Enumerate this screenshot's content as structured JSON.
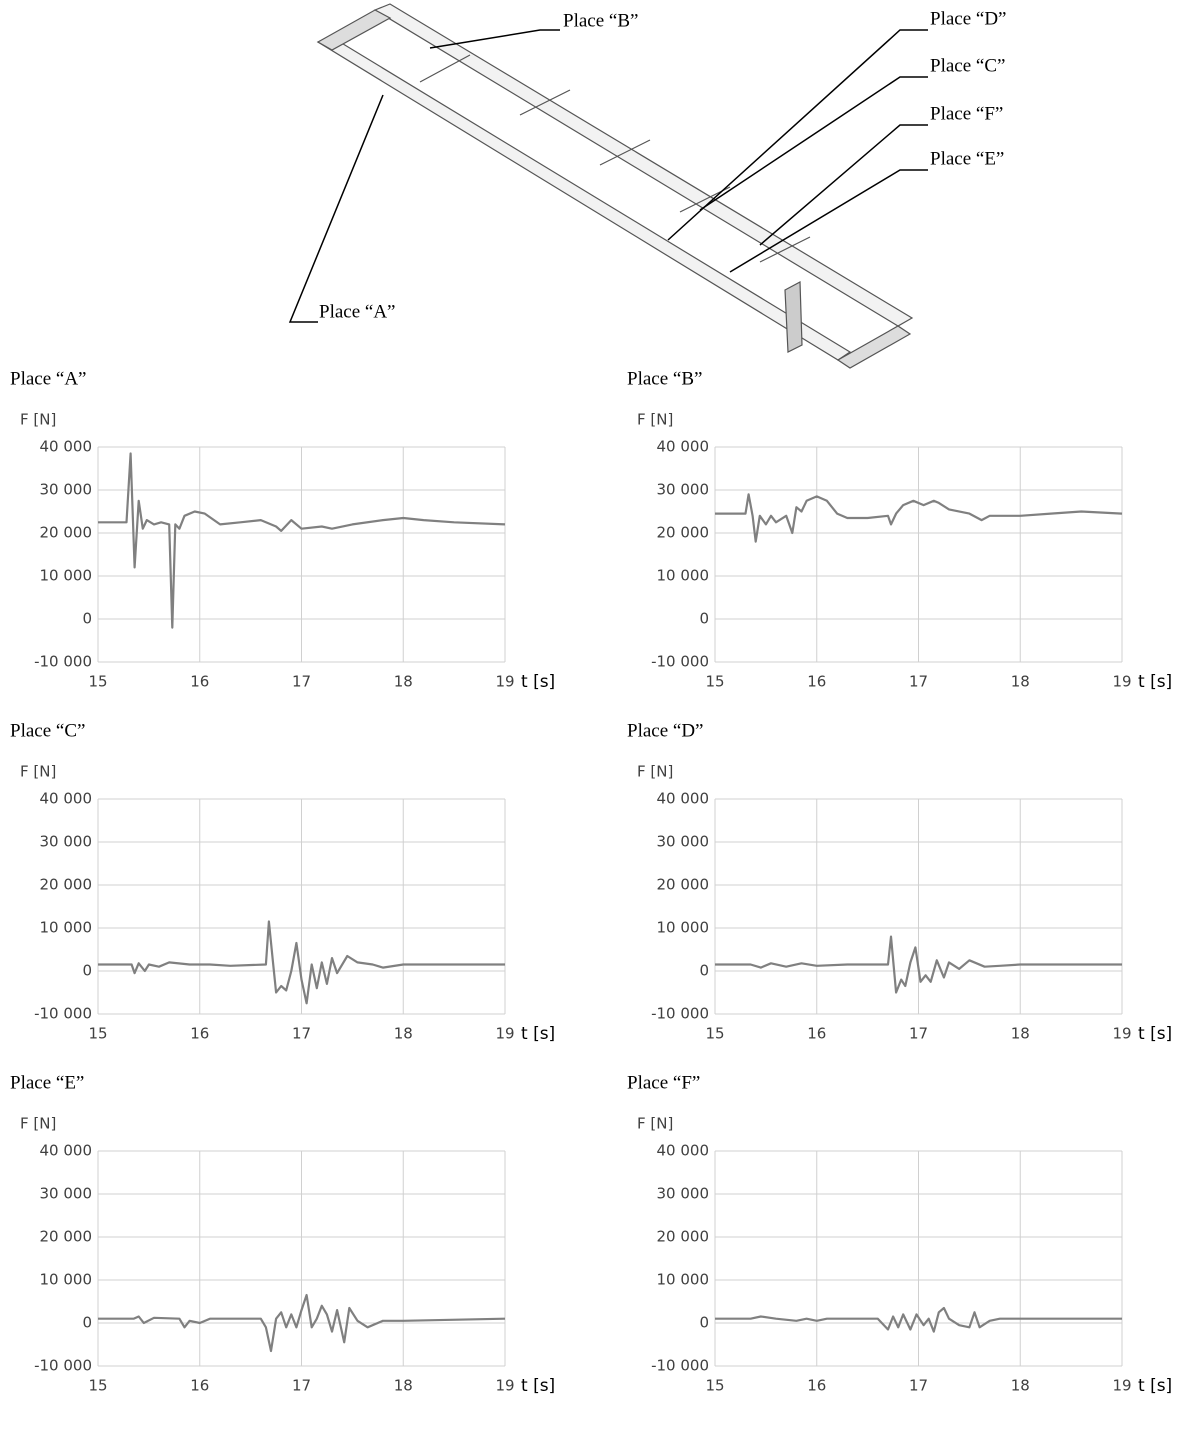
{
  "diagram": {
    "labels": [
      "Place “A”",
      "Place “B”",
      "Place “C”",
      "Place “D”",
      "Place “E”",
      "Place “F”"
    ]
  },
  "chart_data": [
    {
      "type": "line",
      "title": "Place “A”",
      "ylabel": "F [N]",
      "xlabel": "t [s]",
      "xlim": [
        15,
        19
      ],
      "ylim": [
        -10000,
        40000
      ],
      "xticks": [
        15,
        16,
        17,
        18,
        19
      ],
      "yticks": [
        {
          "value": -10000,
          "label": "-10 000"
        },
        0,
        {
          "value": 10000,
          "label": "10 000"
        },
        {
          "value": 20000,
          "label": "20 000"
        },
        {
          "value": 30000,
          "label": "30 000"
        },
        {
          "value": 40000,
          "label": "40 000"
        }
      ],
      "grid": true,
      "x": [
        15,
        15.28,
        15.32,
        15.36,
        15.4,
        15.44,
        15.48,
        15.55,
        15.62,
        15.7,
        15.73,
        15.76,
        15.8,
        15.85,
        15.95,
        16.05,
        16.2,
        16.4,
        16.6,
        16.75,
        16.8,
        16.9,
        17.0,
        17.2,
        17.3,
        17.5,
        17.8,
        18.0,
        18.2,
        18.5,
        19
      ],
      "series": [
        {
          "color": "#808080",
          "values": [
            22500,
            22500,
            38500,
            12000,
            27500,
            21000,
            23000,
            22000,
            22500,
            22000,
            -2000,
            22000,
            21000,
            24000,
            25000,
            24500,
            22000,
            22500,
            23000,
            21500,
            20500,
            23000,
            21000,
            21500,
            21000,
            22000,
            23000,
            23500,
            23000,
            22500,
            22000
          ]
        }
      ]
    },
    {
      "type": "line",
      "title": "Place “B”",
      "ylabel": "F [N]",
      "xlabel": "t [s]",
      "xlim": [
        15,
        19
      ],
      "ylim": [
        -10000,
        40000
      ],
      "xticks": [
        15,
        16,
        17,
        18,
        19
      ],
      "yticks": [
        {
          "value": -10000,
          "label": "-10 000"
        },
        0,
        {
          "value": 10000,
          "label": "10 000"
        },
        {
          "value": 20000,
          "label": "20 000"
        },
        {
          "value": 30000,
          "label": "30 000"
        },
        {
          "value": 40000,
          "label": "40 000"
        }
      ],
      "grid": true,
      "x": [
        15,
        15.3,
        15.33,
        15.37,
        15.4,
        15.44,
        15.5,
        15.55,
        15.6,
        15.7,
        15.76,
        15.8,
        15.85,
        15.9,
        16.0,
        16.1,
        16.2,
        16.3,
        16.5,
        16.7,
        16.73,
        16.78,
        16.85,
        16.95,
        17.05,
        17.15,
        17.2,
        17.3,
        17.5,
        17.62,
        17.7,
        18.0,
        18.3,
        18.6,
        19
      ],
      "series": [
        {
          "color": "#808080",
          "values": [
            24500,
            24500,
            29000,
            24000,
            18000,
            24000,
            22000,
            24000,
            22500,
            24000,
            20000,
            26000,
            25000,
            27500,
            28500,
            27500,
            24500,
            23500,
            23500,
            24000,
            22000,
            24500,
            26500,
            27500,
            26500,
            27500,
            27000,
            25500,
            24500,
            23000,
            24000,
            24000,
            24500,
            25000,
            24500
          ]
        }
      ]
    },
    {
      "type": "line",
      "title": "Place “C”",
      "ylabel": "F [N]",
      "xlabel": "t [s]",
      "xlim": [
        15,
        19
      ],
      "ylim": [
        -10000,
        40000
      ],
      "xticks": [
        15,
        16,
        17,
        18,
        19
      ],
      "yticks": [
        {
          "value": -10000,
          "label": "-10 000"
        },
        0,
        {
          "value": 10000,
          "label": "10 000"
        },
        {
          "value": 20000,
          "label": "20 000"
        },
        {
          "value": 30000,
          "label": "30 000"
        },
        {
          "value": 40000,
          "label": "40 000"
        }
      ],
      "grid": true,
      "x": [
        15,
        15.33,
        15.36,
        15.4,
        15.46,
        15.5,
        15.6,
        15.7,
        15.9,
        16.1,
        16.3,
        16.65,
        16.68,
        16.72,
        16.75,
        16.8,
        16.85,
        16.9,
        16.95,
        17.0,
        17.05,
        17.1,
        17.15,
        17.2,
        17.25,
        17.3,
        17.35,
        17.45,
        17.55,
        17.7,
        17.8,
        18.0,
        19
      ],
      "series": [
        {
          "color": "#808080",
          "values": [
            1500,
            1500,
            -500,
            1800,
            0,
            1500,
            1000,
            2000,
            1500,
            1500,
            1200,
            1500,
            11500,
            2000,
            -5000,
            -3500,
            -4500,
            0,
            6500,
            -2000,
            -7500,
            1500,
            -4000,
            2000,
            -3000,
            3000,
            -500,
            3500,
            2000,
            1500,
            800,
            1500,
            1500
          ]
        }
      ]
    },
    {
      "type": "line",
      "title": "Place “D”",
      "ylabel": "F [N]",
      "xlabel": "t [s]",
      "xlim": [
        15,
        19
      ],
      "ylim": [
        -10000,
        40000
      ],
      "xticks": [
        15,
        16,
        17,
        18,
        19
      ],
      "yticks": [
        {
          "value": -10000,
          "label": "-10 000"
        },
        0,
        {
          "value": 10000,
          "label": "10 000"
        },
        {
          "value": 20000,
          "label": "20 000"
        },
        {
          "value": 30000,
          "label": "30 000"
        },
        {
          "value": 40000,
          "label": "40 000"
        }
      ],
      "grid": true,
      "x": [
        15,
        15.35,
        15.45,
        15.55,
        15.7,
        15.85,
        16.0,
        16.3,
        16.7,
        16.73,
        16.78,
        16.83,
        16.87,
        16.92,
        16.97,
        17.02,
        17.07,
        17.12,
        17.18,
        17.25,
        17.3,
        17.4,
        17.5,
        17.65,
        17.8,
        18.0,
        19
      ],
      "series": [
        {
          "color": "#808080",
          "values": [
            1500,
            1500,
            800,
            1800,
            1000,
            1800,
            1200,
            1500,
            1500,
            8000,
            -5000,
            -2000,
            -3500,
            2000,
            5500,
            -2500,
            -1000,
            -2500,
            2500,
            -1500,
            2000,
            500,
            2500,
            1000,
            1200,
            1500,
            1500
          ]
        }
      ]
    },
    {
      "type": "line",
      "title": "Place “E”",
      "ylabel": "F [N]",
      "xlabel": "t [s]",
      "xlim": [
        15,
        19
      ],
      "ylim": [
        -10000,
        40000
      ],
      "xticks": [
        15,
        16,
        17,
        18,
        19
      ],
      "yticks": [
        {
          "value": -10000,
          "label": "-10 000"
        },
        0,
        {
          "value": 10000,
          "label": "10 000"
        },
        {
          "value": 20000,
          "label": "20 000"
        },
        {
          "value": 30000,
          "label": "30 000"
        },
        {
          "value": 40000,
          "label": "40 000"
        }
      ],
      "grid": true,
      "x": [
        15,
        15.35,
        15.4,
        15.45,
        15.55,
        15.8,
        15.85,
        15.9,
        16.0,
        16.1,
        16.6,
        16.65,
        16.7,
        16.75,
        16.8,
        16.85,
        16.9,
        16.95,
        17.0,
        17.05,
        17.1,
        17.15,
        17.2,
        17.25,
        17.3,
        17.35,
        17.42,
        17.47,
        17.55,
        17.65,
        17.8,
        18.0,
        19
      ],
      "series": [
        {
          "color": "#808080",
          "values": [
            1000,
            1000,
            1500,
            0,
            1200,
            1000,
            -1000,
            500,
            0,
            1000,
            1000,
            -1000,
            -6500,
            1000,
            2500,
            -1000,
            2000,
            -1000,
            3000,
            6500,
            -1000,
            1000,
            4000,
            2000,
            -2000,
            3000,
            -4500,
            3500,
            500,
            -1000,
            500,
            500,
            1000
          ]
        }
      ]
    },
    {
      "type": "line",
      "title": "Place “F”",
      "ylabel": "F [N]",
      "xlabel": "t [s]",
      "xlim": [
        15,
        19
      ],
      "ylim": [
        -10000,
        40000
      ],
      "xticks": [
        15,
        16,
        17,
        18,
        19
      ],
      "yticks": [
        {
          "value": -10000,
          "label": "-10 000"
        },
        0,
        {
          "value": 10000,
          "label": "10 000"
        },
        {
          "value": 20000,
          "label": "20 000"
        },
        {
          "value": 30000,
          "label": "30 000"
        },
        {
          "value": 40000,
          "label": "40 000"
        }
      ],
      "grid": true,
      "x": [
        15,
        15.35,
        15.45,
        15.6,
        15.8,
        15.9,
        16.0,
        16.1,
        16.6,
        16.7,
        16.75,
        16.8,
        16.85,
        16.92,
        16.98,
        17.05,
        17.1,
        17.15,
        17.2,
        17.25,
        17.3,
        17.4,
        17.5,
        17.55,
        17.6,
        17.7,
        17.8,
        18.0,
        19
      ],
      "series": [
        {
          "color": "#808080",
          "values": [
            1000,
            1000,
            1500,
            1000,
            500,
            1000,
            500,
            1000,
            1000,
            -1500,
            1500,
            -1000,
            2000,
            -1500,
            2000,
            -500,
            1000,
            -2000,
            2500,
            3500,
            1000,
            -500,
            -1000,
            2500,
            -1000,
            500,
            1000,
            1000,
            1000
          ]
        }
      ]
    }
  ]
}
